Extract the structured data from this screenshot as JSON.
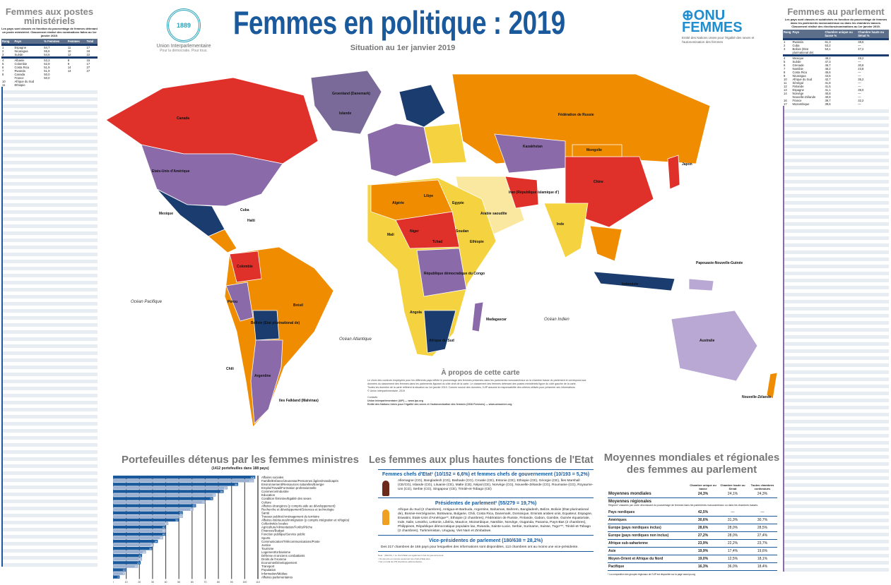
{
  "header": {
    "title": "Femmes en politique : 2019",
    "subtitle": "Situation au 1er janvier 2019",
    "ipu_logo": {
      "year": "1889",
      "name": "Union Interparlementaire",
      "tagline": "Pour la démocratie. Pour tous."
    },
    "unwomen_logo": {
      "name_line1": "ONU",
      "name_line2": "FEMMES",
      "tagline": "Entité des Nations Unies pour l'égalité des sexes et l'autonomisation des femmes"
    }
  },
  "colors": {
    "title_blue": "#1a5a9c",
    "navy": "#1a3c6e",
    "orange": "#f08c00",
    "purple": "#8a6aa8",
    "red": "#e0302a",
    "yellow": "#f5d340",
    "light_purple": "#b9a8d4",
    "light_yellow": "#fbe8a0"
  },
  "left_panel": {
    "title": "Femmes aux postes ministériels",
    "intro": "Les pays sont classés en fonction du pourcentage de femmes détenant un poste ministériel. Classement réalisé des nominations faites au 1er janvier 2019.",
    "columns": [
      "Rang",
      "Pays",
      "% Femmes",
      "Femmes",
      "Total"
    ],
    "rows": [
      [
        "1",
        "Espagne",
        "64,7",
        "11",
        "17"
      ],
      [
        "2",
        "Nicaragua",
        "55,6",
        "10",
        "18"
      ],
      [
        "3",
        "Suède",
        "54,5",
        "12",
        "22"
      ],
      [
        "4",
        "Albanie",
        "53,3",
        "8",
        "15"
      ],
      [
        "5",
        "Colombie",
        "52,9",
        "9",
        "17"
      ],
      [
        "6",
        "Costa Rica",
        "51,9",
        "14",
        "27"
      ],
      [
        "7",
        "Rwanda",
        "51,9",
        "14",
        "27"
      ],
      [
        "8",
        "Canada",
        "50,0",
        "",
        ""
      ],
      [
        "",
        "France",
        "50,0",
        "",
        ""
      ],
      [
        "10",
        "Afrique du Sud",
        "",
        "",
        ""
      ],
      [
        "11",
        "Ethiopie",
        "",
        "",
        ""
      ]
    ]
  },
  "right_panel": {
    "title": "Femmes au parlement",
    "intro": "Les pays sont classés et subdivisés en fonction du pourcentage de femmes dans les parlements monocaméraux ou dans les chambres basses. Classement réalisé des élections/nominations au 1er janvier 2019.",
    "columns": [
      "Rang",
      "Pays",
      "Chambre unique ou basse %",
      "Chambre haute ou Sénat %"
    ],
    "rows": [
      [
        "1",
        "Rwanda",
        "61,3",
        "38,5"
      ],
      [
        "2",
        "Cuba",
        "53,2",
        "—"
      ],
      [
        "3",
        "Bolivie (Etat plurinational de)",
        "53,1",
        "47,2"
      ],
      [
        "4",
        "Mexique",
        "48,2",
        "49,2"
      ],
      [
        "5",
        "Suède",
        "47,3",
        "—"
      ],
      [
        "6",
        "Grenade",
        "46,7",
        "30,8"
      ],
      [
        "7",
        "Namibie",
        "46,2",
        "23,8"
      ],
      [
        "8",
        "Costa Rica",
        "45,6",
        "—"
      ],
      [
        "9",
        "Nicaragua",
        "44,6",
        "—"
      ],
      [
        "10",
        "Afrique du Sud",
        "42,7",
        "35,2"
      ],
      [
        "11",
        "Sénégal",
        "41,8",
        "—"
      ],
      [
        "12",
        "Finlande",
        "41,5",
        "—"
      ],
      [
        "13",
        "Espagne",
        "41,1",
        "39,0"
      ],
      [
        "14",
        "Norvège",
        "40,8",
        "—"
      ],
      [
        "",
        "Nouvelle-Zélande",
        "40,8",
        "—"
      ],
      [
        "16",
        "France",
        "39,7",
        "32,2"
      ],
      [
        "17",
        "Mozambique",
        "39,6",
        "—"
      ]
    ]
  },
  "map": {
    "labels": [
      "Canada",
      "Etats-Unis d'Amérique",
      "Mexique",
      "Groenland (Danemark)",
      "Islande",
      "Fédération de Russie",
      "Chine",
      "Inde",
      "Kazakhstan",
      "Brésil",
      "Argentine",
      "Colombie",
      "Pérou",
      "Chili",
      "Bolivie (Etat plurinational de)",
      "Algérie",
      "Libye",
      "Egypte",
      "Mali",
      "Niger",
      "Tchad",
      "Soudan",
      "Ethiopie",
      "République démocratique du Congo",
      "Angola",
      "Afrique du Sud",
      "Madagascar",
      "Australie",
      "Indonésie",
      "Japon",
      "Mongolie",
      "Iran (République islamique d')",
      "Arabie saoudite",
      "Papouasie-Nouvelle-Guinée",
      "Nouvelle-Zélande",
      "Iles Falkland (Malvinas)",
      "Cuba",
      "Haïti"
    ],
    "oceans": [
      "Océan Pacifique",
      "Océan Atlantique",
      "Océan Indien"
    ]
  },
  "about": {
    "title": "À propos de cette carte",
    "paragraphs": [
      "Le choix des couleurs employées pour les différents pays reflète le pourcentage des femmes présentes dans les parlements monocaméraux ou la chambre basse du parlement et correspond aux données du classement des femmes dans les parlements figurant du côté droit de la carte. Le classement des femmes détenant des postes ministériels figure du côté gauche de la carte.",
      "Toutes les données de la carte reflètent la situation au 1er janvier 2019. Comme source des données, l'UIP assume la responsabilité des critères utilisés pour présenter ses informations.",
      "© Union interparlementaire, 2019"
    ],
    "contacts_label": "Contacts",
    "contact_ipu": "Union interparlementaire (UIP) — www.ipu.org",
    "contact_unwomen": "Entité des Nations Unies pour l'égalité des sexes et l'autonomisation des femmes (ONU Femmes) — www.unwomen.org"
  },
  "chart_data": {
    "type": "bar",
    "orientation": "horizontal",
    "title": "Portefeuilles détenus par les femmes ministres",
    "subtitle": "(1412 portefeuilles dans 188 pays)",
    "categories": [
      "Affaires sociales",
      "Famille/Enfance/Jeunesse/Personnes âgées/Handicapés",
      "Environnement/Ressources naturelles/Energie",
      "Emploi/Travail/Formation professionnelle",
      "Commerce/Industrie",
      "Education",
      "Condition féminine/Egalité des sexes",
      "Culture",
      "Affaires étrangères (y compris aide au développement)",
      "Recherche et développement/Sciences et technologie",
      "Santé",
      "Travaux publics/Aménagement du territoire",
      "Affaires intérieures/Immigration (y compris intégration et réfugiés)",
      "Collectivités locales",
      "Agriculture/Alimentation/Forêts/Pêche",
      "Finances/Budget",
      "Fonction publique/Service public",
      "Sports",
      "Communication/Télécommunications/Poste",
      "Justice",
      "Tourisme",
      "Logement/Urbanisme",
      "Défense et anciens combattants",
      "Droits de l'Homme",
      "Economie/Développement",
      "Transport",
      "Population",
      "Information/Médias",
      "Affaires parlementaires"
    ],
    "values": [
      108,
      107,
      95,
      87,
      84,
      78,
      76,
      70,
      63,
      61,
      53,
      53,
      50,
      42,
      40,
      40,
      40,
      38,
      34,
      31,
      30,
      25,
      22,
      22,
      21,
      19,
      10,
      9,
      5
    ],
    "xlim": [
      0,
      110
    ],
    "xticks": [
      0,
      10,
      20,
      30,
      40,
      50,
      60,
      70,
      80,
      90,
      100,
      110
    ],
    "colors": [
      "#1a5a9c",
      "#9bb0d0"
    ],
    "grid": true
  },
  "heads": {
    "title": "Les femmes aux plus hautes fonctions de l'Etat",
    "blocks": [
      {
        "heading": "Femmes chefs d'Etat¹ (10/152 = 6,6%) et femmes chefs de gouvernement (10/193 = 5,2%)",
        "figure_color": "#6b2a1a",
        "text": "Allemagne (CG), Bangladesh (CG), Barbade (CG), Croatie (CE), Estonie (CE), Ethiopie (CE), Géorgie (CE), Îles Marshall (CE/CG), Islande (CG), Lituanie (CE), Malte (CE), Népal (CE), Norvège (CG), Nouvelle-Zélande (CG), Roumanie (CG), Royaume-Uni (CG), Serbie (CG), Singapour (CE), Trinité-et-Tobago (CE)"
      },
      {
        "heading": "Présidentes de parlement² (55/279 = 19,7%)",
        "figure_color": "#f0a020",
        "text": "Afrique du Sud (2 chambres), Antigua-et-Barbuda, Argentine, Bahamas, Bahreïn, Bangladesh, Belize, Bolivie (État plurinational de), Bosnie-Herzégovine, Botswana, Bulgarie, Chili, Costa Rica, Danemark, Dominique, Emirats arabes unis, Equateur, Espagne, Eswatini, Etats-Unis d'Amérique**, Ethiopie (2 chambres), Fédération de Russie, Finlande, Gabon, Gambie, Guinée équatoriale, Inde, Italie, Lesotho, Lettonie, Libéria, Maurice, Mozambique, Namibie, Norvège, Ouganda, Panama, Pays-Bas (2 chambres), Philippines, République démocratique populaire lao, Rwanda, Sainte-Lucie, Serbie, Suriname, Suisse, Togo***, Trinité-et-Tobago (2 chambres), Turkménistan, Uruguay, Viet Nam et Zimbabwe."
      },
      {
        "heading": "Vice-présidentes de parlement (180/638 = 28,2%)",
        "figure_color": "",
        "text": "Des 217 chambres de 166 pays pour lesquelles des informations sont disponibles, 113 chambres ont au moins une vice-présidente."
      }
    ],
    "notes": [
      "Note : (CE/CG) = Le chef d'Etat est également chef du gouvernement.",
      "¹ On été pris en compte seulement les chefs d'Etat élus.",
      "² Sur un total de 279 chambres parlementaires."
    ]
  },
  "averages": {
    "title": "Moyennes mondiales et régionales des femmes au parlement",
    "columns": [
      "Chambre unique ou basse",
      "Chambre haute ou Sénat",
      "Toutes chambres confondues"
    ],
    "world_label": "Moyennes mondiales",
    "world": [
      "24,3%",
      "24,1%",
      "24,3%"
    ],
    "regional_label": "Moyennes régionales",
    "regional_note": "Régions* classées par ordre décroissant du pourcentage de femmes dans les parlements monocaméraux ou dans les chambres basses.",
    "rows": [
      {
        "region": "Pays nordiques",
        "values": [
          "42,5%",
          "—",
          "—"
        ]
      },
      {
        "region": "Amériques",
        "values": [
          "30,6%",
          "31,3%",
          "30,7%"
        ]
      },
      {
        "region": "Europe (pays nordiques inclus)",
        "values": [
          "28,6%",
          "28,0%",
          "28,5%"
        ]
      },
      {
        "region": "Europe (pays nordiques non inclus)",
        "values": [
          "27,2%",
          "28,0%",
          "27,4%"
        ]
      },
      {
        "region": "Afrique sub-saharienne",
        "values": [
          "23,9%",
          "22,2%",
          "23,7%"
        ]
      },
      {
        "region": "Asie",
        "values": [
          "19,9%",
          "17,4%",
          "19,6%"
        ]
      },
      {
        "region": "Moyen-Orient et Afrique du Nord",
        "values": [
          "19,0%",
          "12,5%",
          "18,1%"
        ]
      },
      {
        "region": "Pacifique",
        "values": [
          "16,3%",
          "36,0%",
          "18,4%"
        ]
      }
    ],
    "footnote": "* La composition des groupes régionaux de l'UIP est disponible sur la page www.ipu.org"
  }
}
